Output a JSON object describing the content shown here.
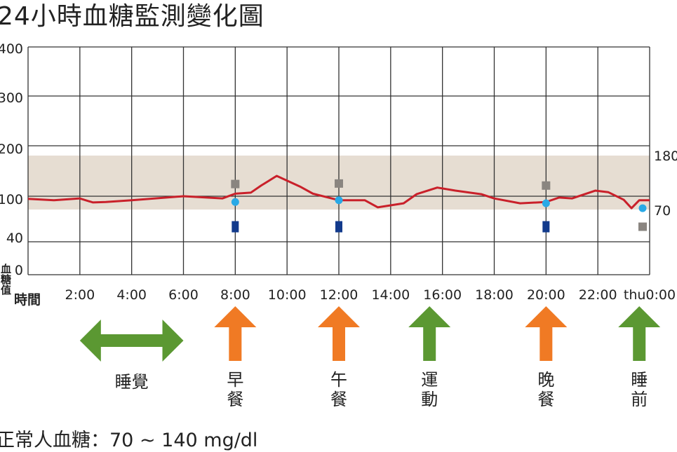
{
  "title": "24小時血糖監測變化圖",
  "note": "正常人血糖：70 ~ 140 mg/dl",
  "chart_data": {
    "type": "line",
    "title": "24小時血糖監測變化圖",
    "ylabel": "血糖值",
    "xlabel": "時間",
    "ylim": [
      0,
      400
    ],
    "y_ticks": [
      400,
      300,
      200,
      100,
      40,
      0
    ],
    "x_ticks": [
      "2:00",
      "4:00",
      "6:00",
      "8:00",
      "10:00",
      "12:00",
      "14:00",
      "16:00",
      "18:00",
      "20:00",
      "22:00",
      "thu0:00"
    ],
    "x_tick_hours": [
      2,
      4,
      6,
      8,
      10,
      12,
      14,
      16,
      18,
      20,
      22,
      24
    ],
    "grid": true,
    "normal_band": {
      "low": 70,
      "high": 180,
      "low_label": "70",
      "high_label": "180",
      "color": "#e6ddd2"
    },
    "series": [
      {
        "type": "line",
        "color": "#c9202a",
        "points": [
          [
            0,
            94
          ],
          [
            1,
            91
          ],
          [
            2,
            95
          ],
          [
            2.5,
            86
          ],
          [
            3,
            87
          ],
          [
            4,
            91
          ],
          [
            6,
            100
          ],
          [
            7.5,
            95
          ],
          [
            8,
            105
          ],
          [
            8.6,
            107
          ],
          [
            9,
            121
          ],
          [
            9.6,
            140
          ],
          [
            10.5,
            119
          ],
          [
            11,
            105
          ],
          [
            12,
            91
          ],
          [
            13,
            91
          ],
          [
            13.5,
            75
          ],
          [
            14.5,
            84
          ],
          [
            15,
            104
          ],
          [
            15.8,
            117
          ],
          [
            16.5,
            111
          ],
          [
            17.5,
            104
          ],
          [
            18,
            95
          ],
          [
            19,
            84
          ],
          [
            20,
            87
          ],
          [
            20.5,
            97
          ],
          [
            21,
            95
          ],
          [
            21.9,
            111
          ],
          [
            22.4,
            108
          ],
          [
            23,
            92
          ],
          [
            23.3,
            73
          ],
          [
            23.6,
            91
          ],
          [
            24,
            91
          ]
        ]
      },
      {
        "type": "marker",
        "shape": "square",
        "color": "#8a8580",
        "points": [
          [
            8,
            124
          ],
          [
            12,
            125
          ],
          [
            20,
            121
          ],
          [
            24,
            54
          ]
        ]
      },
      {
        "type": "marker",
        "shape": "circle",
        "color": "#29a9e6",
        "points": [
          [
            8,
            87
          ],
          [
            12,
            91
          ],
          [
            20,
            84
          ],
          [
            24,
            73
          ]
        ]
      },
      {
        "type": "marker",
        "shape": "bar",
        "color": "#123a8c",
        "points": [
          [
            8,
            54
          ],
          [
            12,
            54
          ],
          [
            20,
            54
          ]
        ]
      }
    ],
    "activities": [
      {
        "label": [
          "睡覺"
        ],
        "arrow": "double-horizontal",
        "from_hour": 2,
        "to_hour": 6,
        "color": "#5b9832"
      },
      {
        "label": [
          "早",
          "餐"
        ],
        "arrow": "up",
        "hour": 8,
        "color": "#f07a24"
      },
      {
        "label": [
          "午",
          "餐"
        ],
        "arrow": "up",
        "hour": 12,
        "color": "#f07a24"
      },
      {
        "label": [
          "運",
          "動"
        ],
        "arrow": "up",
        "hour": 15.5,
        "color": "#5b9832"
      },
      {
        "label": [
          "晚",
          "餐"
        ],
        "arrow": "up",
        "hour": 20,
        "color": "#f07a24"
      },
      {
        "label": [
          "睡",
          "前"
        ],
        "arrow": "up",
        "hour": 23.6,
        "color": "#5b9832"
      }
    ]
  }
}
